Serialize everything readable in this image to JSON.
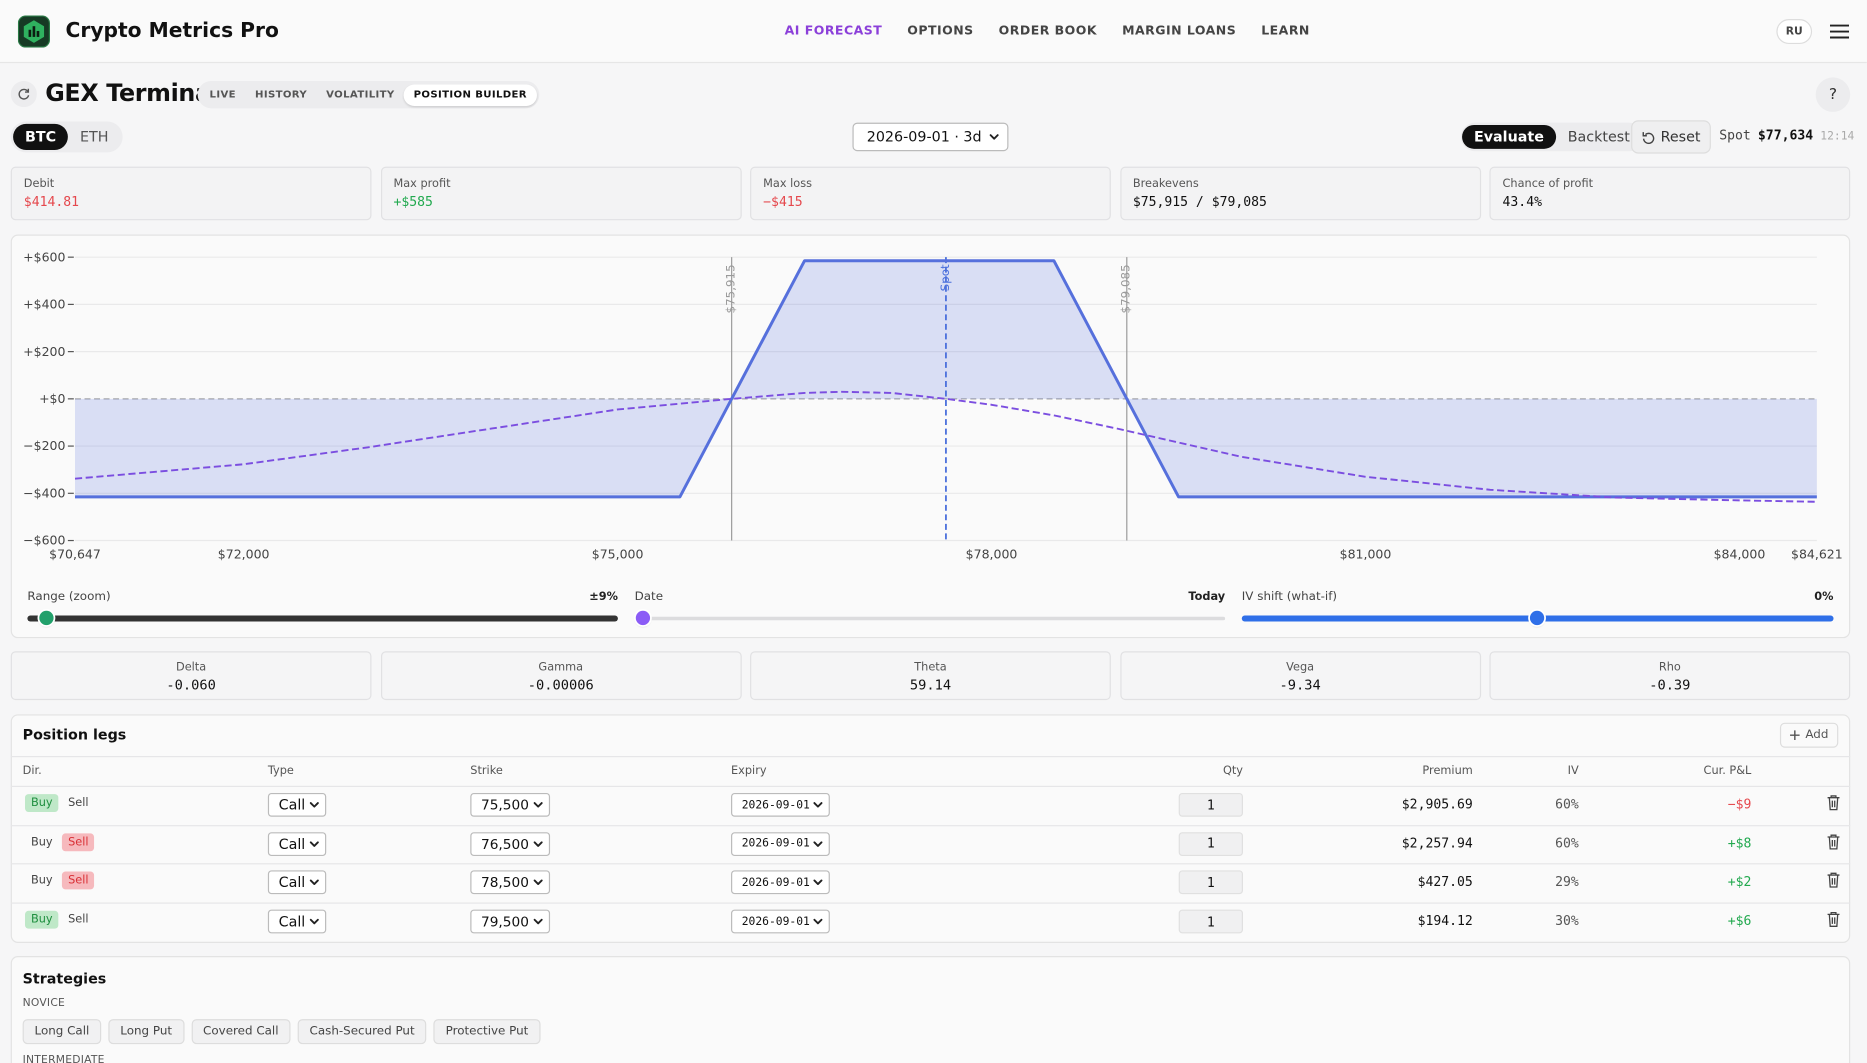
{
  "header": {
    "brand": "Crypto Metrics Pro",
    "nav": [
      "AI FORECAST",
      "OPTIONS",
      "ORDER BOOK",
      "MARGIN LOANS",
      "LEARN"
    ],
    "active_nav": 0,
    "lang": "RU"
  },
  "toolbar": {
    "title": "GEX Terminal",
    "tabs": [
      "LIVE",
      "HISTORY",
      "VOLATILITY",
      "POSITION BUILDER"
    ],
    "active_tab": 3,
    "help": "?"
  },
  "controls": {
    "assets": [
      "BTC",
      "ETH"
    ],
    "active_asset": 0,
    "expiry": "2026-09-01 · 3d",
    "modes": [
      "Evaluate",
      "Backtest"
    ],
    "active_mode": 0,
    "reset": "Reset",
    "spot_label": "Spot",
    "spot": "$77,634",
    "time": "12:14"
  },
  "summary": [
    {
      "label": "Debit",
      "value": "$414.81",
      "tone": "negative"
    },
    {
      "label": "Max profit",
      "value": "+$585",
      "tone": "positive"
    },
    {
      "label": "Max loss",
      "value": "−$415",
      "tone": "negative"
    },
    {
      "label": "Breakevens",
      "value": "$75,915 / $79,085",
      "tone": "neutral"
    },
    {
      "label": "Chance of profit",
      "value": "43.4%",
      "tone": "neutral"
    }
  ],
  "chart_data": {
    "type": "line",
    "xlim": [
      70647,
      84621
    ],
    "xticks": [
      {
        "value": 70647,
        "label": "$70,647"
      },
      {
        "value": 72000,
        "label": "$72,000"
      },
      {
        "value": 75000,
        "label": "$75,000"
      },
      {
        "value": 78000,
        "label": "$78,000"
      },
      {
        "value": 81000,
        "label": "$81,000"
      },
      {
        "value": 84000,
        "label": "$84,000"
      },
      {
        "value": 84621,
        "label": "$84,621"
      }
    ],
    "ylim": [
      -600,
      600
    ],
    "yticks": [
      {
        "value": 600,
        "label": "+$600"
      },
      {
        "value": 400,
        "label": "+$400"
      },
      {
        "value": 200,
        "label": "+$200"
      },
      {
        "value": 0,
        "label": "+$0"
      },
      {
        "value": -200,
        "label": "−$200"
      },
      {
        "value": -400,
        "label": "−$400"
      },
      {
        "value": -600,
        "label": "−$600"
      }
    ],
    "grid": true,
    "series": [
      {
        "color": "#5670dc",
        "fill": true,
        "dashed": false,
        "x": [
          70647,
          75500,
          76500,
          78500,
          79500,
          84621
        ],
        "values": [
          -415,
          -415,
          585,
          585,
          -415,
          -415
        ]
      },
      {
        "color": "#7b4ee0",
        "fill": false,
        "dashed": true,
        "x": [
          70647,
          72000,
          73000,
          74000,
          75000,
          75915,
          76500,
          76800,
          77200,
          77634,
          78000,
          78500,
          79000,
          79500,
          80000,
          81000,
          82000,
          83000,
          84000,
          84621
        ],
        "values": [
          -338,
          -277,
          -205,
          -125,
          -45,
          0,
          25,
          30,
          25,
          0,
          -25,
          -70,
          -125,
          -185,
          -245,
          -330,
          -385,
          -418,
          -430,
          -436
        ]
      }
    ],
    "markers": [
      {
        "value": 75915,
        "label": "$75,915",
        "color": "#9a9a9a",
        "dashed": false
      },
      {
        "value": 77634,
        "label": "Spot",
        "color": "#4a6fdc",
        "dashed": true
      },
      {
        "value": 79085,
        "label": "$79,085",
        "color": "#9a9a9a",
        "dashed": false
      }
    ]
  },
  "sliders": [
    {
      "label": "Range (zoom)",
      "value": "±9%"
    },
    {
      "label": "Date",
      "value": "Today"
    },
    {
      "label": "IV shift (what-if)",
      "value": "0%"
    }
  ],
  "greeks": [
    {
      "label": "Delta",
      "value": "-0.060"
    },
    {
      "label": "Gamma",
      "value": "-0.00006"
    },
    {
      "label": "Theta",
      "value": "59.14"
    },
    {
      "label": "Vega",
      "value": "-9.34"
    },
    {
      "label": "Rho",
      "value": "-0.39"
    }
  ],
  "legs": {
    "title": "Position legs",
    "add": "Add",
    "sides": [
      "Buy",
      "Sell"
    ],
    "columns": [
      "Dir.",
      "Type",
      "Strike",
      "Expiry",
      "Qty",
      "Premium",
      "IV",
      "Cur. P&L"
    ],
    "rows": [
      {
        "side": 0,
        "type": "Call",
        "strike": "75,500",
        "expiry": "2026-09-01",
        "qty": "1",
        "premium": "$2,905.69",
        "iv": "60%",
        "pnl": "−$9",
        "tone": "negative"
      },
      {
        "side": 1,
        "type": "Call",
        "strike": "76,500",
        "expiry": "2026-09-01",
        "qty": "1",
        "premium": "$2,257.94",
        "iv": "60%",
        "pnl": "+$8",
        "tone": "positive"
      },
      {
        "side": 1,
        "type": "Call",
        "strike": "78,500",
        "expiry": "2026-09-01",
        "qty": "1",
        "premium": "$427.05",
        "iv": "29%",
        "pnl": "+$2",
        "tone": "positive"
      },
      {
        "side": 0,
        "type": "Call",
        "strike": "79,500",
        "expiry": "2026-09-01",
        "qty": "1",
        "premium": "$194.12",
        "iv": "30%",
        "pnl": "+$6",
        "tone": "positive"
      }
    ]
  },
  "strategies": {
    "title": "Strategies",
    "groups": [
      {
        "name": "NOVICE",
        "items": [
          "Long Call",
          "Long Put",
          "Covered Call",
          "Cash-Secured Put",
          "Protective Put"
        ]
      },
      {
        "name": "INTERMEDIATE",
        "items": []
      }
    ]
  }
}
